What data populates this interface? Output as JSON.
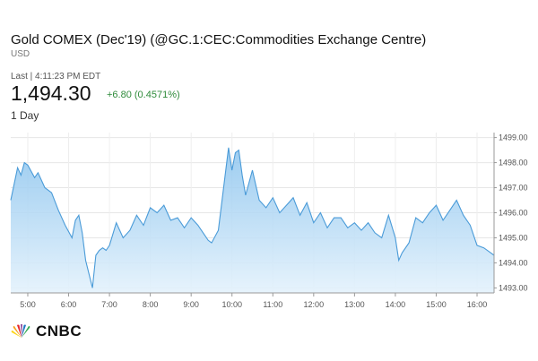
{
  "header": {
    "title": "Gold COMEX (Dec'19) (@GC.1:CEC:Commodities Exchange Centre)",
    "currency": "USD",
    "last_label": "Last | 4:11:23 PM EDT",
    "price": "1,494.30",
    "change": "+6.80 (0.4571%)",
    "range": "1 Day"
  },
  "brand": {
    "logo_text": "CNBC",
    "line_color": "#4a9bd8",
    "fill_color": "#bfe0f8",
    "change_color": "#2e8b3a"
  },
  "chart_data": {
    "type": "area",
    "xlabel": "",
    "ylabel": "",
    "x_ticks": [
      "5:00",
      "6:00",
      "7:00",
      "8:00",
      "9:00",
      "10:00",
      "11:00",
      "12:00",
      "13:00",
      "14:00",
      "15:00",
      "16:00"
    ],
    "y_ticks": [
      "1493.00",
      "1494.00",
      "1495.00",
      "1496.00",
      "1497.00",
      "1498.00",
      "1499.00"
    ],
    "ylim": [
      1492.8,
      1499.2
    ],
    "xlim": [
      "4:35",
      "16:25"
    ],
    "grid": true,
    "y_axis_position": "right",
    "series": [
      {
        "x": [
          "4:35",
          "4:45",
          "4:50",
          "4:55",
          "5:00",
          "5:10",
          "5:15",
          "5:25",
          "5:35",
          "5:45",
          "5:55",
          "6:05",
          "6:10",
          "6:15",
          "6:20",
          "6:25",
          "6:35",
          "6:40",
          "6:45",
          "6:50",
          "6:55",
          "7:00",
          "7:10",
          "7:20",
          "7:30",
          "7:40",
          "7:50",
          "8:00",
          "8:10",
          "8:20",
          "8:30",
          "8:40",
          "8:50",
          "9:00",
          "9:10",
          "9:20",
          "9:25",
          "9:30",
          "9:40",
          "9:50",
          "9:55",
          "10:00",
          "10:05",
          "10:10",
          "10:15",
          "10:20",
          "10:30",
          "10:40",
          "10:50",
          "11:00",
          "11:10",
          "11:20",
          "11:30",
          "11:40",
          "11:50",
          "12:00",
          "12:10",
          "12:20",
          "12:30",
          "12:40",
          "12:50",
          "13:00",
          "13:10",
          "13:20",
          "13:30",
          "13:40",
          "13:50",
          "14:00",
          "14:05",
          "14:10",
          "14:20",
          "14:30",
          "14:40",
          "14:50",
          "15:00",
          "15:10",
          "15:20",
          "15:30",
          "15:40",
          "15:50",
          "16:00",
          "16:10",
          "16:20",
          "16:25"
        ],
        "y": [
          1496.5,
          1497.8,
          1497.5,
          1498.0,
          1497.9,
          1497.4,
          1497.6,
          1497.0,
          1496.8,
          1496.1,
          1495.5,
          1495.0,
          1495.7,
          1495.9,
          1495.2,
          1494.1,
          1493.0,
          1494.3,
          1494.5,
          1494.6,
          1494.5,
          1494.7,
          1495.6,
          1495.0,
          1495.3,
          1495.9,
          1495.5,
          1496.2,
          1496.0,
          1496.3,
          1495.7,
          1495.8,
          1495.4,
          1495.8,
          1495.5,
          1495.1,
          1494.9,
          1494.8,
          1495.3,
          1497.5,
          1498.6,
          1497.7,
          1498.4,
          1498.5,
          1497.5,
          1496.7,
          1497.7,
          1496.5,
          1496.2,
          1496.6,
          1496.0,
          1496.3,
          1496.6,
          1495.9,
          1496.4,
          1495.6,
          1496.0,
          1495.4,
          1495.8,
          1495.8,
          1495.4,
          1495.6,
          1495.3,
          1495.6,
          1495.2,
          1495.0,
          1495.9,
          1495.0,
          1494.1,
          1494.4,
          1494.8,
          1495.8,
          1495.6,
          1496.0,
          1496.3,
          1495.7,
          1496.1,
          1496.5,
          1495.9,
          1495.5,
          1494.7,
          1494.6,
          1494.4,
          1494.3
        ]
      }
    ]
  }
}
